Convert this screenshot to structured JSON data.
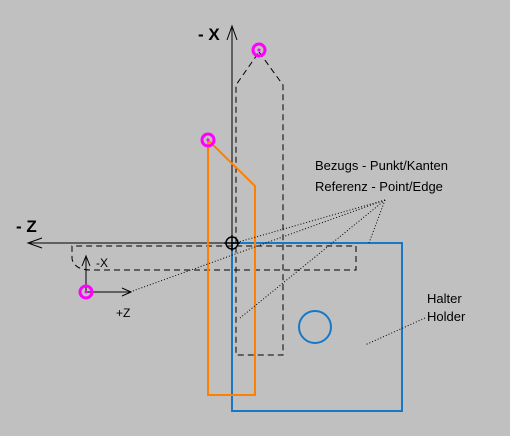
{
  "axes": {
    "x_main_label": "- X",
    "z_main_label": "- Z",
    "x_small_label": "-X",
    "z_small_label": "+Z"
  },
  "annotations": {
    "reference_line1": "Bezugs - Punkt/Kanten",
    "reference_line2": "Referenz - Point/Edge",
    "holder_line1": "Halter",
    "holder_line2": "Holder"
  },
  "colors": {
    "background": "#c0c0c0",
    "holder": "#1878c8",
    "tool_outline": "#ff7f00",
    "reference_marker": "#ff00ff",
    "lines": "#000000"
  }
}
